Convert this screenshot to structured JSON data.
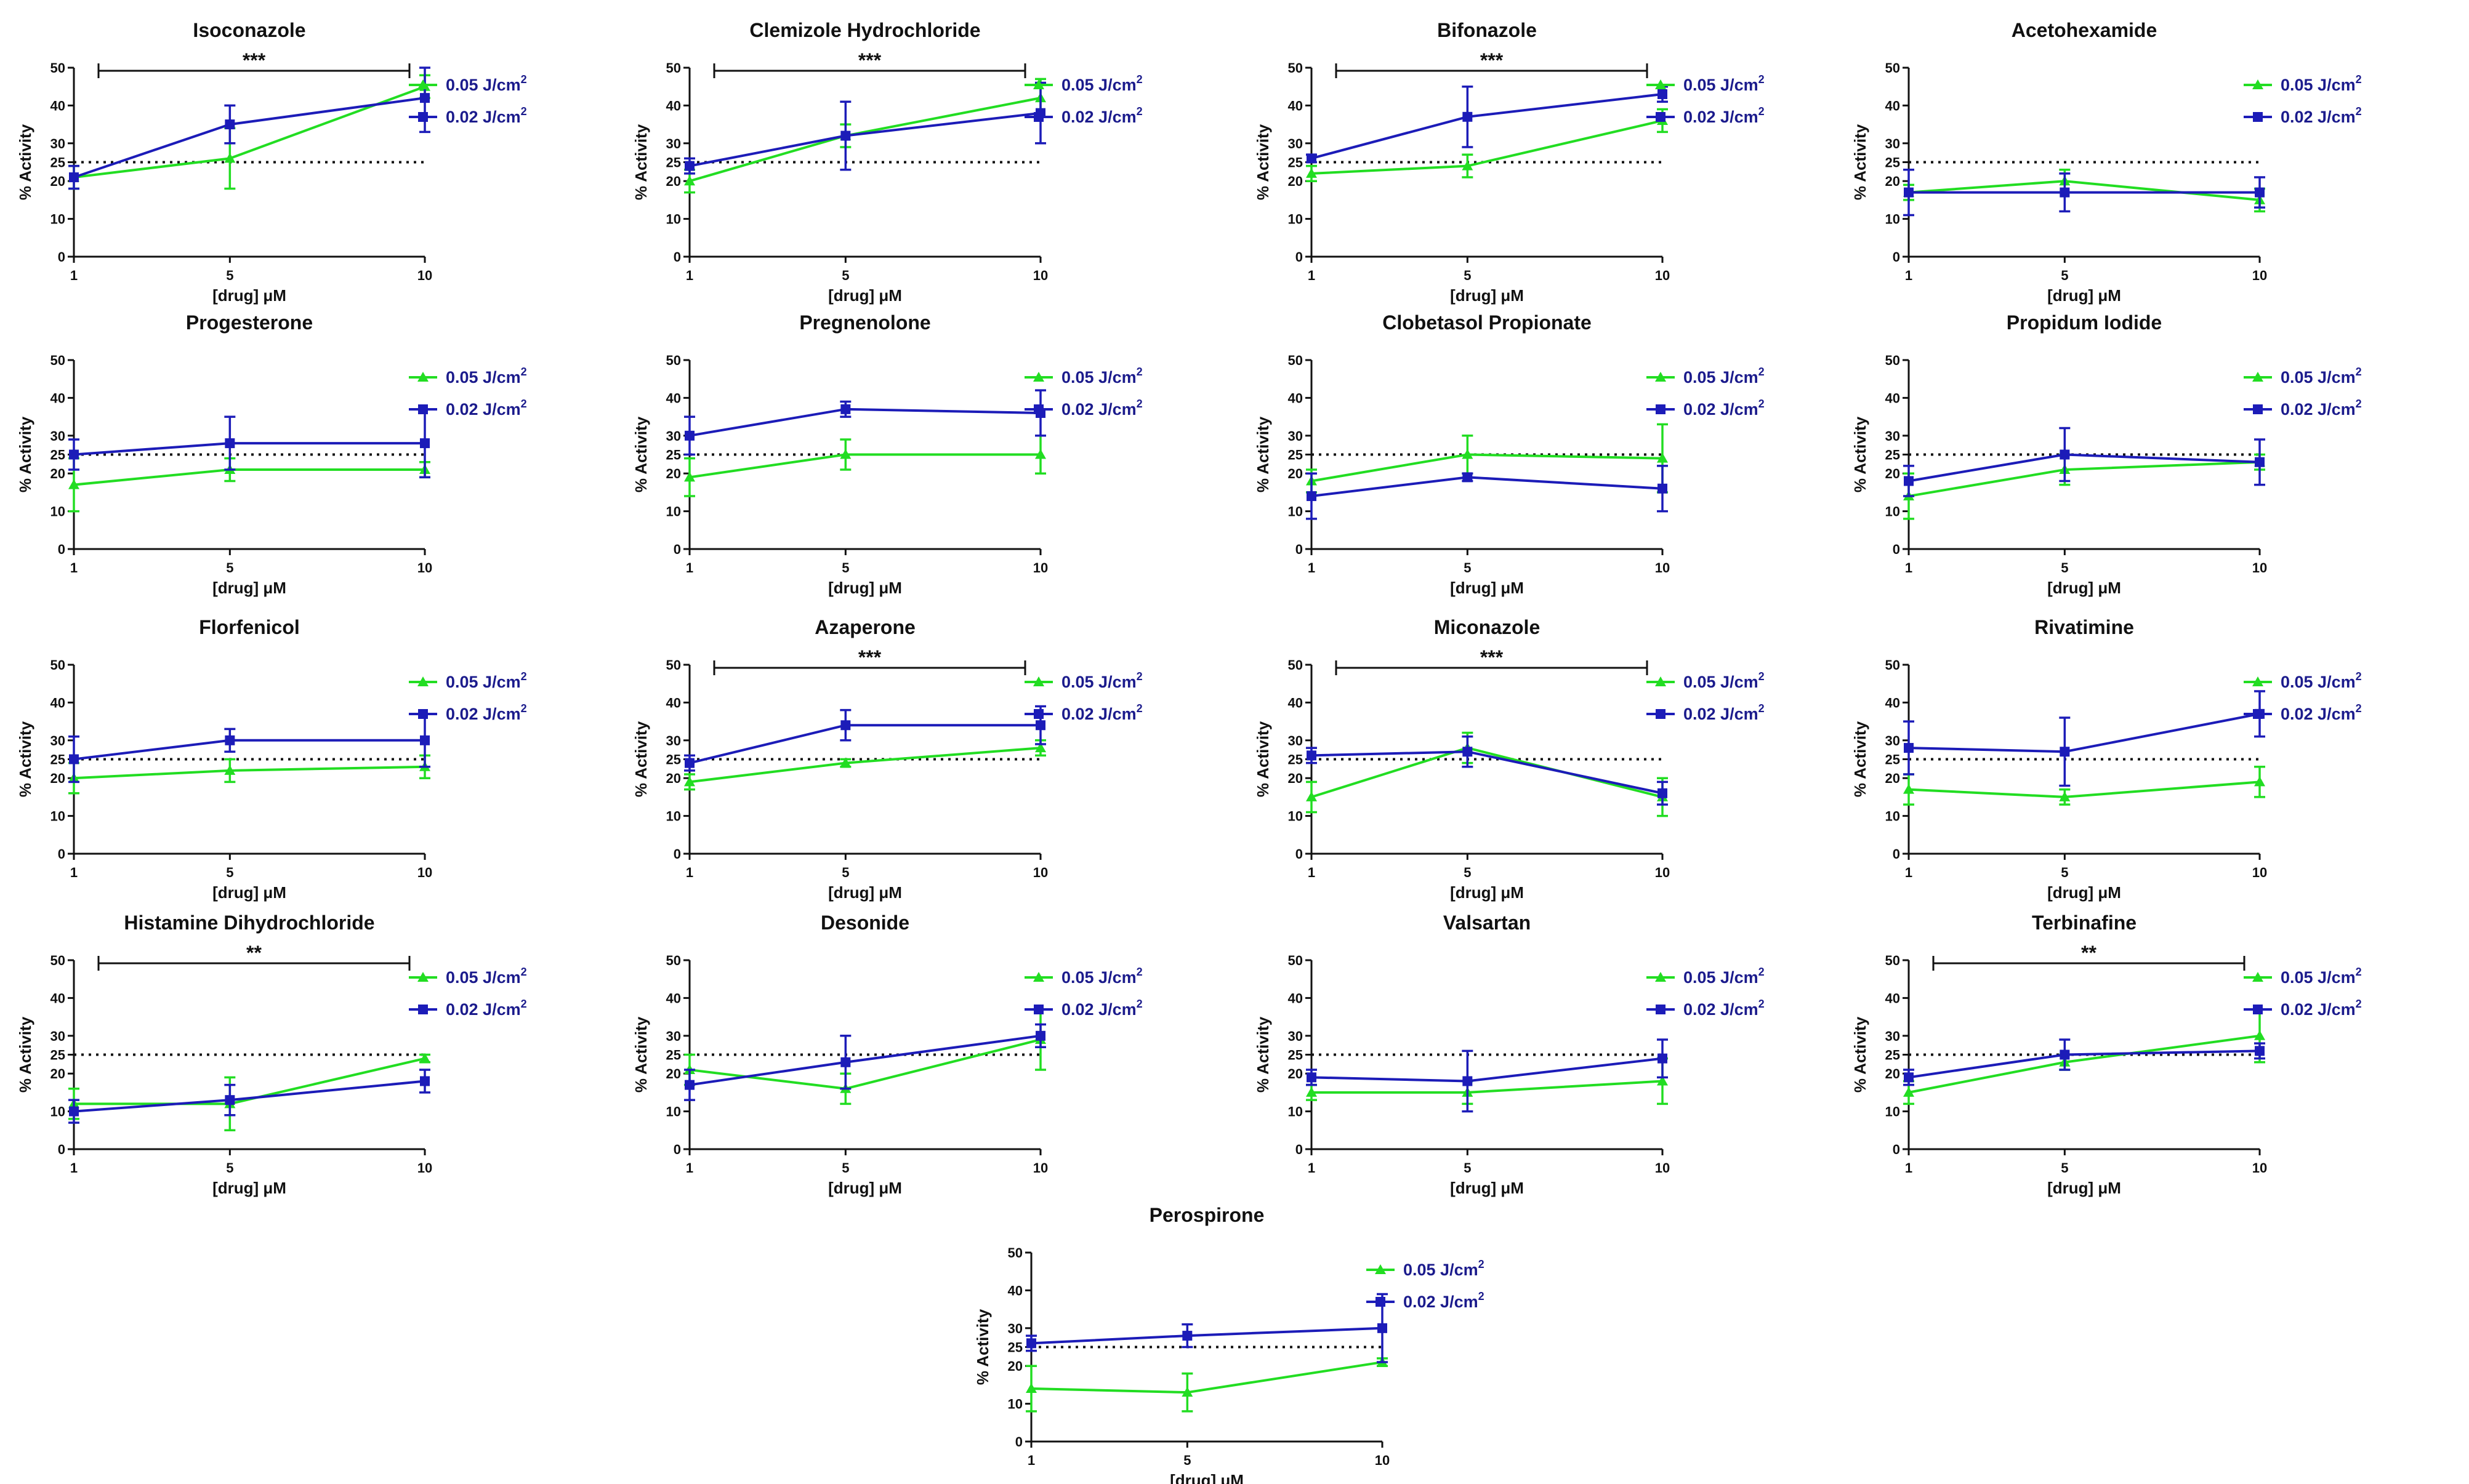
{
  "figure": {
    "colors": {
      "series_005": "#22dd22",
      "series_002": "#1c1cb8",
      "axis": "#111111",
      "text": "#111111",
      "legend_text": "#1b1b8c"
    },
    "unit_superscript": "2",
    "icons": {
      "series_005_marker": "triangle-up",
      "series_002_marker": "square"
    }
  },
  "chart_data": [
    {
      "type": "line",
      "title": "Isoconazole",
      "xlabel": "[drug] μM",
      "ylabel": "% Activity",
      "categories": [
        "1",
        "5",
        "10"
      ],
      "yticks": [
        0,
        10,
        20,
        25,
        30,
        40,
        50
      ],
      "ylim": [
        0,
        50
      ],
      "threshold": 25,
      "significance": "***",
      "series": [
        {
          "name": "0.05 J/cm",
          "values": [
            21,
            26,
            45
          ],
          "errors": [
            3,
            8,
            3
          ]
        },
        {
          "name": "0.02 J/cm",
          "values": [
            21,
            35,
            42
          ],
          "errors": [
            3,
            5,
            9
          ]
        }
      ]
    },
    {
      "type": "line",
      "title": "Clemizole Hydrochloride",
      "xlabel": "[drug] μM",
      "ylabel": "% Activity",
      "categories": [
        "1",
        "5",
        "10"
      ],
      "yticks": [
        0,
        10,
        20,
        25,
        30,
        40,
        50
      ],
      "ylim": [
        0,
        50
      ],
      "threshold": 25,
      "significance": "***",
      "series": [
        {
          "name": "0.05 J/cm",
          "values": [
            20,
            32,
            42
          ],
          "errors": [
            3,
            3,
            5
          ]
        },
        {
          "name": "0.02 J/cm",
          "values": [
            24,
            32,
            38
          ],
          "errors": [
            2,
            9,
            8
          ]
        }
      ]
    },
    {
      "type": "line",
      "title": "Bifonazole",
      "xlabel": "[drug] μM",
      "ylabel": "% Activity",
      "categories": [
        "1",
        "5",
        "10"
      ],
      "yticks": [
        0,
        10,
        20,
        25,
        30,
        40,
        50
      ],
      "ylim": [
        0,
        50
      ],
      "threshold": 25,
      "significance": "***",
      "series": [
        {
          "name": "0.05 J/cm",
          "values": [
            22,
            24,
            36
          ],
          "errors": [
            2,
            3,
            3
          ]
        },
        {
          "name": "0.02 J/cm",
          "values": [
            26,
            37,
            43
          ],
          "errors": [
            1,
            8,
            2
          ]
        }
      ]
    },
    {
      "type": "line",
      "title": "Acetohexamide",
      "xlabel": "[drug] μM",
      "ylabel": "% Activity",
      "categories": [
        "1",
        "5",
        "10"
      ],
      "yticks": [
        0,
        10,
        20,
        25,
        30,
        40,
        50
      ],
      "ylim": [
        0,
        50
      ],
      "threshold": 25,
      "significance": "",
      "series": [
        {
          "name": "0.05 J/cm",
          "values": [
            17,
            20,
            15
          ],
          "errors": [
            2,
            3,
            3
          ]
        },
        {
          "name": "0.02 J/cm",
          "values": [
            17,
            17,
            17
          ],
          "errors": [
            6,
            5,
            4
          ]
        }
      ]
    },
    {
      "type": "line",
      "title": "Progesterone",
      "xlabel": "[drug] μM",
      "ylabel": "% Activity",
      "categories": [
        "1",
        "5",
        "10"
      ],
      "yticks": [
        0,
        10,
        20,
        25,
        30,
        40,
        50
      ],
      "ylim": [
        0,
        50
      ],
      "threshold": 25,
      "significance": "",
      "series": [
        {
          "name": "0.05 J/cm",
          "values": [
            17,
            21,
            21
          ],
          "errors": [
            7,
            3,
            2
          ]
        },
        {
          "name": "0.02 J/cm",
          "values": [
            25,
            28,
            28
          ],
          "errors": [
            4,
            7,
            9
          ]
        }
      ]
    },
    {
      "type": "line",
      "title": "Pregnenolone",
      "xlabel": "[drug] μM",
      "ylabel": "% Activity",
      "categories": [
        "1",
        "5",
        "10"
      ],
      "yticks": [
        0,
        10,
        20,
        25,
        30,
        40,
        50
      ],
      "ylim": [
        0,
        50
      ],
      "threshold": 25,
      "significance": "",
      "series": [
        {
          "name": "0.05 J/cm",
          "values": [
            19,
            25,
            25
          ],
          "errors": [
            5,
            4,
            5
          ]
        },
        {
          "name": "0.02 J/cm",
          "values": [
            30,
            37,
            36
          ],
          "errors": [
            5,
            2,
            6
          ]
        }
      ]
    },
    {
      "type": "line",
      "title": "Clobetasol Propionate",
      "xlabel": "[drug] μM",
      "ylabel": "% Activity",
      "categories": [
        "1",
        "5",
        "10"
      ],
      "yticks": [
        0,
        10,
        20,
        25,
        30,
        40,
        50
      ],
      "ylim": [
        0,
        50
      ],
      "threshold": 25,
      "significance": "",
      "series": [
        {
          "name": "0.05 J/cm",
          "values": [
            18,
            25,
            24
          ],
          "errors": [
            3,
            5,
            9
          ]
        },
        {
          "name": "0.02 J/cm",
          "values": [
            14,
            19,
            16
          ],
          "errors": [
            6,
            1,
            6
          ]
        }
      ]
    },
    {
      "type": "line",
      "title": "Propidum Iodide",
      "xlabel": "[drug] μM",
      "ylabel": "% Activity",
      "categories": [
        "1",
        "5",
        "10"
      ],
      "yticks": [
        0,
        10,
        20,
        25,
        30,
        40,
        50
      ],
      "ylim": [
        0,
        50
      ],
      "threshold": 25,
      "significance": "",
      "series": [
        {
          "name": "0.05 J/cm",
          "values": [
            14,
            21,
            23
          ],
          "errors": [
            6,
            4,
            2
          ]
        },
        {
          "name": "0.02 J/cm",
          "values": [
            18,
            25,
            23
          ],
          "errors": [
            4,
            7,
            6
          ]
        }
      ]
    },
    {
      "type": "line",
      "title": "Florfenicol",
      "xlabel": "[drug] μM",
      "ylabel": "% Activity",
      "categories": [
        "1",
        "5",
        "10"
      ],
      "yticks": [
        0,
        10,
        20,
        25,
        30,
        40,
        50
      ],
      "ylim": [
        0,
        50
      ],
      "threshold": 25,
      "significance": "",
      "series": [
        {
          "name": "0.05 J/cm",
          "values": [
            20,
            22,
            23
          ],
          "errors": [
            4,
            3,
            3
          ]
        },
        {
          "name": "0.02 J/cm",
          "values": [
            25,
            30,
            30
          ],
          "errors": [
            6,
            3,
            7
          ]
        }
      ]
    },
    {
      "type": "line",
      "title": "Azaperone",
      "xlabel": "[drug] μM",
      "ylabel": "% Activity",
      "categories": [
        "1",
        "5",
        "10"
      ],
      "yticks": [
        0,
        10,
        20,
        25,
        30,
        40,
        50
      ],
      "ylim": [
        0,
        50
      ],
      "threshold": 25,
      "significance": "***",
      "series": [
        {
          "name": "0.05 J/cm",
          "values": [
            19,
            24,
            28
          ],
          "errors": [
            2,
            1,
            2
          ]
        },
        {
          "name": "0.02 J/cm",
          "values": [
            24,
            34,
            34
          ],
          "errors": [
            2,
            4,
            5
          ]
        }
      ]
    },
    {
      "type": "line",
      "title": "Miconazole",
      "xlabel": "[drug] μM",
      "ylabel": "% Activity",
      "categories": [
        "1",
        "5",
        "10"
      ],
      "yticks": [
        0,
        10,
        20,
        25,
        30,
        40,
        50
      ],
      "ylim": [
        0,
        50
      ],
      "threshold": 25,
      "significance": "***",
      "series": [
        {
          "name": "0.05 J/cm",
          "values": [
            15,
            28,
            15
          ],
          "errors": [
            4,
            4,
            5
          ]
        },
        {
          "name": "0.02 J/cm",
          "values": [
            26,
            27,
            16
          ],
          "errors": [
            2,
            4,
            3
          ]
        }
      ]
    },
    {
      "type": "line",
      "title": "Rivatimine",
      "xlabel": "[drug] μM",
      "ylabel": "% Activity",
      "categories": [
        "1",
        "5",
        "10"
      ],
      "yticks": [
        0,
        10,
        20,
        25,
        30,
        40,
        50
      ],
      "ylim": [
        0,
        50
      ],
      "threshold": 25,
      "significance": "",
      "series": [
        {
          "name": "0.05 J/cm",
          "values": [
            17,
            15,
            19
          ],
          "errors": [
            4,
            2,
            4
          ]
        },
        {
          "name": "0.02 J/cm",
          "values": [
            28,
            27,
            37
          ],
          "errors": [
            7,
            9,
            6
          ]
        }
      ]
    },
    {
      "type": "line",
      "title": "Histamine Dihydrochloride",
      "xlabel": "[drug] μM",
      "ylabel": "% Activity",
      "categories": [
        "1",
        "5",
        "10"
      ],
      "yticks": [
        0,
        10,
        20,
        25,
        30,
        40,
        50
      ],
      "ylim": [
        0,
        50
      ],
      "threshold": 25,
      "significance": "**",
      "series": [
        {
          "name": "0.05 J/cm",
          "values": [
            12,
            12,
            24
          ],
          "errors": [
            4,
            7,
            1
          ]
        },
        {
          "name": "0.02 J/cm",
          "values": [
            10,
            13,
            18
          ],
          "errors": [
            3,
            4,
            3
          ]
        }
      ]
    },
    {
      "type": "line",
      "title": "Desonide",
      "xlabel": "[drug] μM",
      "ylabel": "% Activity",
      "categories": [
        "1",
        "5",
        "10"
      ],
      "yticks": [
        0,
        10,
        20,
        25,
        30,
        40,
        50
      ],
      "ylim": [
        0,
        50
      ],
      "threshold": 25,
      "significance": "",
      "series": [
        {
          "name": "0.05 J/cm",
          "values": [
            21,
            16,
            29
          ],
          "errors": [
            4,
            4,
            8
          ]
        },
        {
          "name": "0.02 J/cm",
          "values": [
            17,
            23,
            30
          ],
          "errors": [
            4,
            7,
            3
          ]
        }
      ]
    },
    {
      "type": "line",
      "title": "Valsartan",
      "xlabel": "[drug] μM",
      "ylabel": "% Activity",
      "categories": [
        "1",
        "5",
        "10"
      ],
      "yticks": [
        0,
        10,
        20,
        25,
        30,
        40,
        50
      ],
      "ylim": [
        0,
        50
      ],
      "threshold": 25,
      "significance": "",
      "series": [
        {
          "name": "0.05 J/cm",
          "values": [
            15,
            15,
            18
          ],
          "errors": [
            2,
            3,
            6
          ]
        },
        {
          "name": "0.02 J/cm",
          "values": [
            19,
            18,
            24
          ],
          "errors": [
            2,
            8,
            5
          ]
        }
      ]
    },
    {
      "type": "line",
      "title": "Terbinafine",
      "xlabel": "[drug] μM",
      "ylabel": "% Activity",
      "categories": [
        "1",
        "5",
        "10"
      ],
      "yticks": [
        0,
        10,
        20,
        25,
        30,
        40,
        50
      ],
      "ylim": [
        0,
        50
      ],
      "threshold": 25,
      "significance": "**",
      "series": [
        {
          "name": "0.05 J/cm",
          "values": [
            15,
            23,
            30
          ],
          "errors": [
            3,
            2,
            7
          ]
        },
        {
          "name": "0.02 J/cm",
          "values": [
            19,
            25,
            26
          ],
          "errors": [
            2,
            4,
            2
          ]
        }
      ]
    },
    {
      "type": "line",
      "title": "Perospirone",
      "xlabel": "[drug] μM",
      "ylabel": "% Activity",
      "categories": [
        "1",
        "5",
        "10"
      ],
      "yticks": [
        0,
        10,
        20,
        25,
        30,
        40,
        50
      ],
      "ylim": [
        0,
        50
      ],
      "threshold": 25,
      "significance": "",
      "series": [
        {
          "name": "0.05 J/cm",
          "values": [
            14,
            13,
            21
          ],
          "errors": [
            6,
            5,
            1
          ]
        },
        {
          "name": "0.02 J/cm",
          "values": [
            26,
            28,
            30
          ],
          "errors": [
            2,
            3,
            9
          ]
        }
      ]
    }
  ]
}
